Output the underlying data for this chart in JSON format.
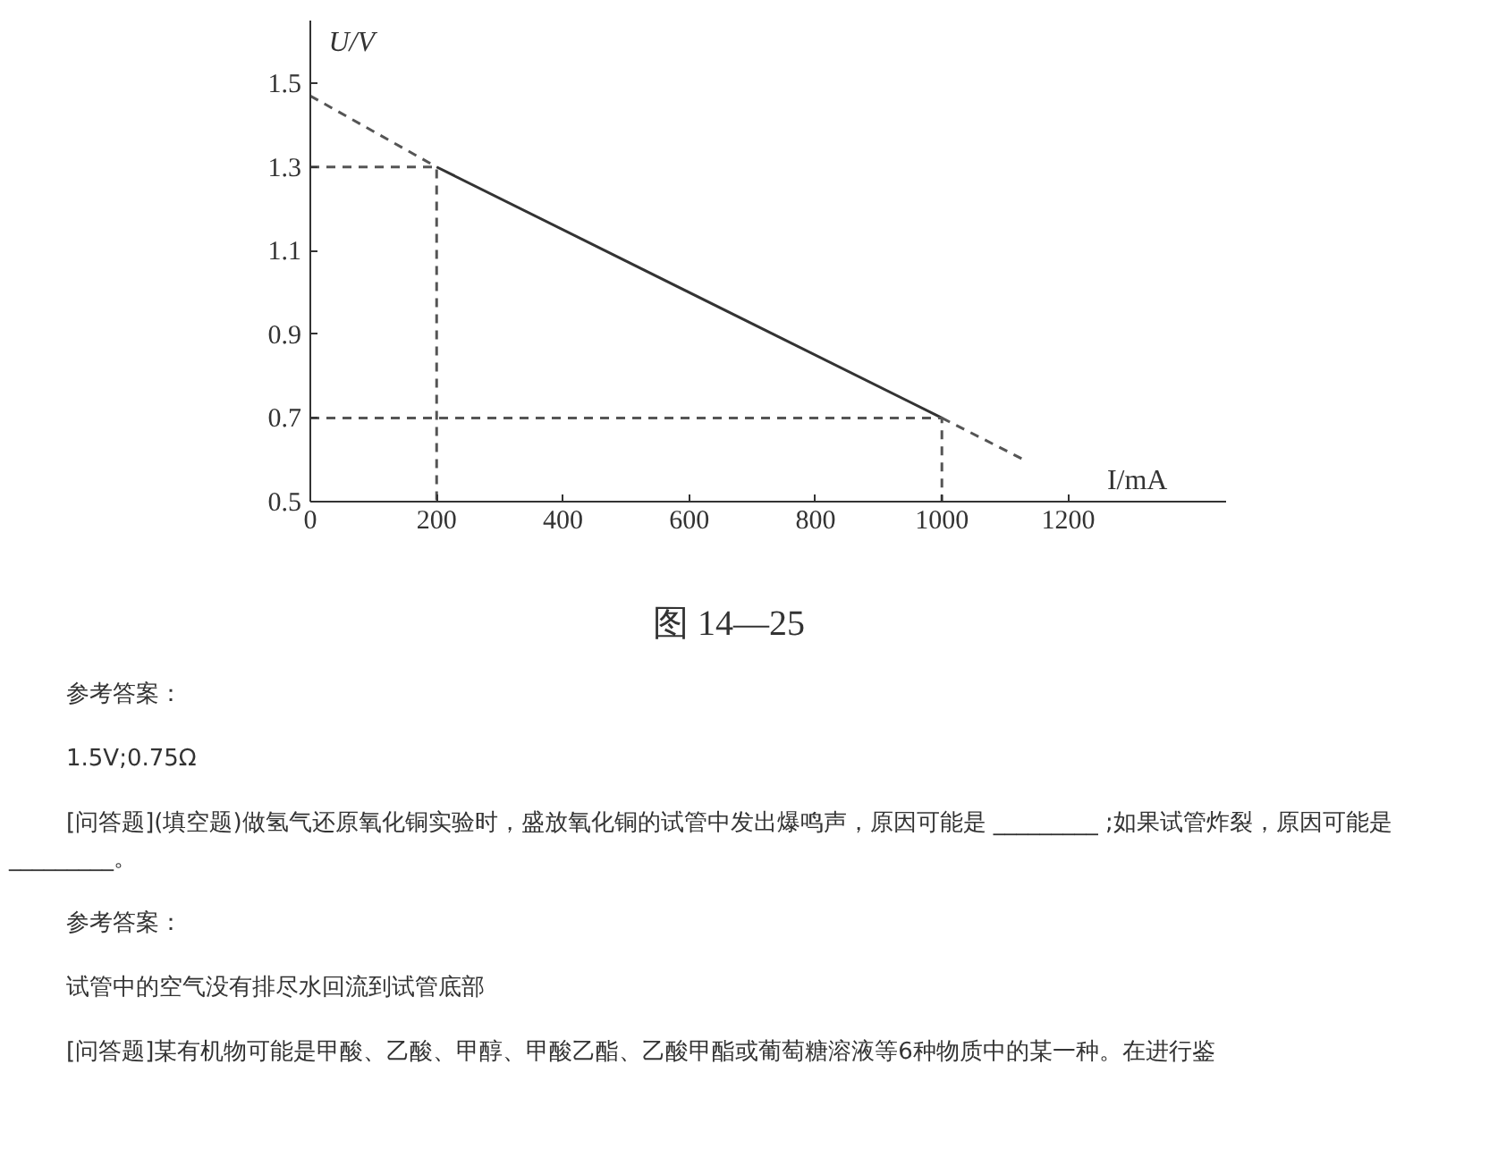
{
  "chart_data": {
    "type": "line",
    "xlabel": "I/mA",
    "ylabel": "U/V",
    "xlim": [
      0,
      1450
    ],
    "ylim": [
      0.5,
      1.65
    ],
    "xticks": [
      0,
      200,
      400,
      600,
      800,
      1000,
      1200
    ],
    "yticks": [
      0.5,
      0.7,
      0.9,
      1.1,
      1.3,
      1.5
    ],
    "grid": false,
    "marker": "none",
    "series": [
      {
        "color": "#333333",
        "line_style": "solid",
        "x": [
          200,
          1000
        ],
        "values": [
          1.3,
          0.7
        ]
      },
      {
        "color": "#555555",
        "line_style": "dashed",
        "x": [
          0,
          200
        ],
        "values": [
          1.47,
          1.3
        ]
      },
      {
        "color": "#555555",
        "line_style": "dashed",
        "x": [
          1000,
          1130
        ],
        "values": [
          0.7,
          0.6
        ]
      },
      {
        "color": "#555555",
        "line_style": "dashed",
        "x": [
          0,
          200,
          200
        ],
        "values": [
          1.3,
          1.3,
          0.5
        ]
      },
      {
        "color": "#555555",
        "line_style": "dashed",
        "x": [
          0,
          1000,
          1000
        ],
        "values": [
          0.7,
          0.7,
          0.5
        ]
      }
    ],
    "annotations": [
      "图 14—25",
      "参考答案：",
      "1.5V;0.75Ω",
      "[问答题](填空题)做氢气还原氧化铜实验时，盛放氧化铜的试管中发出爆鸣声，原因可能是 _________ ;如果试管炸裂，原因可能是_________。",
      "参考答案：",
      "试管中的空气没有排尽水回流到试管底部",
      "[问答题]某有机物可能是甲酸、乙酸、甲醇、甲酸乙酯、乙酸甲酯或葡萄糖溶液等6种物质中的某一种。在进行鉴"
    ]
  }
}
